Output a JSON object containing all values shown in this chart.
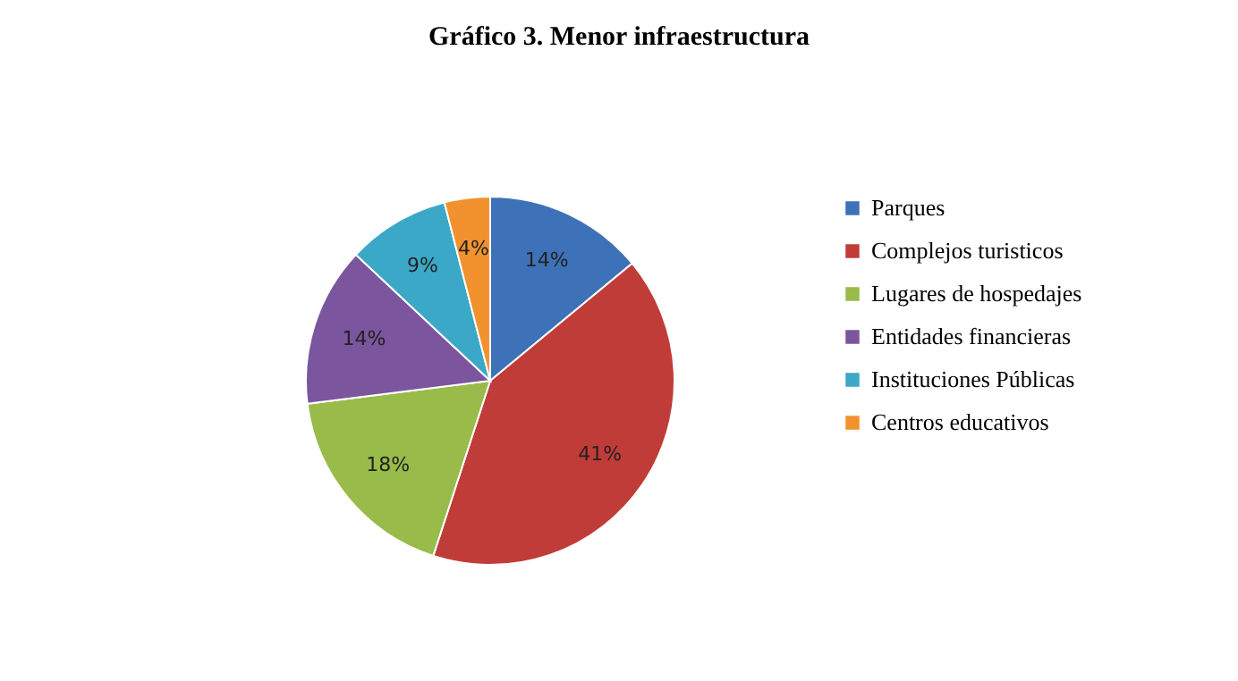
{
  "chart_data": {
    "type": "pie",
    "title": "Gráfico 3. Menor infraestructura",
    "categories": [
      "Parques",
      "Complejos turisticos",
      "Lugares de hospedajes",
      "Entidades financieras",
      "Instituciones Públicas",
      "Centros educativos"
    ],
    "values": [
      14,
      41,
      18,
      14,
      9,
      4
    ],
    "value_labels": [
      "14%",
      "41%",
      "18%",
      "14%",
      "9%",
      "4%"
    ],
    "colors": [
      "#3d72b8",
      "#c03c38",
      "#99bb4a",
      "#7b559e",
      "#3aa8c6",
      "#f2922e"
    ],
    "legend": "right"
  }
}
